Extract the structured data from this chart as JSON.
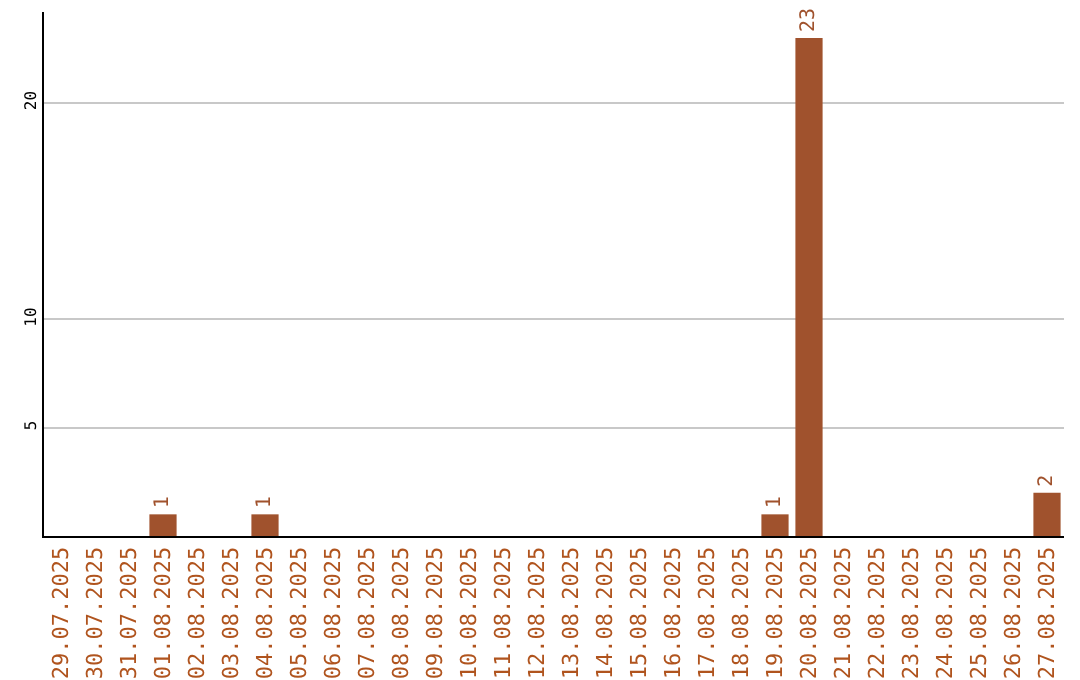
{
  "chart_data": {
    "type": "bar",
    "categories": [
      "29.07.2025",
      "30.07.2025",
      "31.07.2025",
      "01.08.2025",
      "02.08.2025",
      "03.08.2025",
      "04.08.2025",
      "05.08.2025",
      "06.08.2025",
      "07.08.2025",
      "08.08.2025",
      "09.08.2025",
      "10.08.2025",
      "11.08.2025",
      "12.08.2025",
      "13.08.2025",
      "14.08.2025",
      "15.08.2025",
      "16.08.2025",
      "17.08.2025",
      "18.08.2025",
      "19.08.2025",
      "20.08.2025",
      "21.08.2025",
      "22.08.2025",
      "23.08.2025",
      "24.08.2025",
      "25.08.2025",
      "26.08.2025",
      "27.08.2025"
    ],
    "values": [
      0,
      0,
      0,
      1,
      0,
      0,
      1,
      0,
      0,
      0,
      0,
      0,
      0,
      0,
      0,
      0,
      0,
      0,
      0,
      0,
      0,
      1,
      23,
      0,
      0,
      0,
      0,
      0,
      0,
      2
    ],
    "value_labels": [
      null,
      null,
      null,
      "1",
      null,
      null,
      "1",
      null,
      null,
      null,
      null,
      null,
      null,
      null,
      null,
      null,
      null,
      null,
      null,
      null,
      null,
      "1",
      "23",
      null,
      null,
      null,
      null,
      null,
      null,
      "2"
    ],
    "color": "#a0522d",
    "ylim": [
      0,
      24.2
    ],
    "yticks": [
      5,
      10,
      20
    ],
    "grid": "y"
  }
}
